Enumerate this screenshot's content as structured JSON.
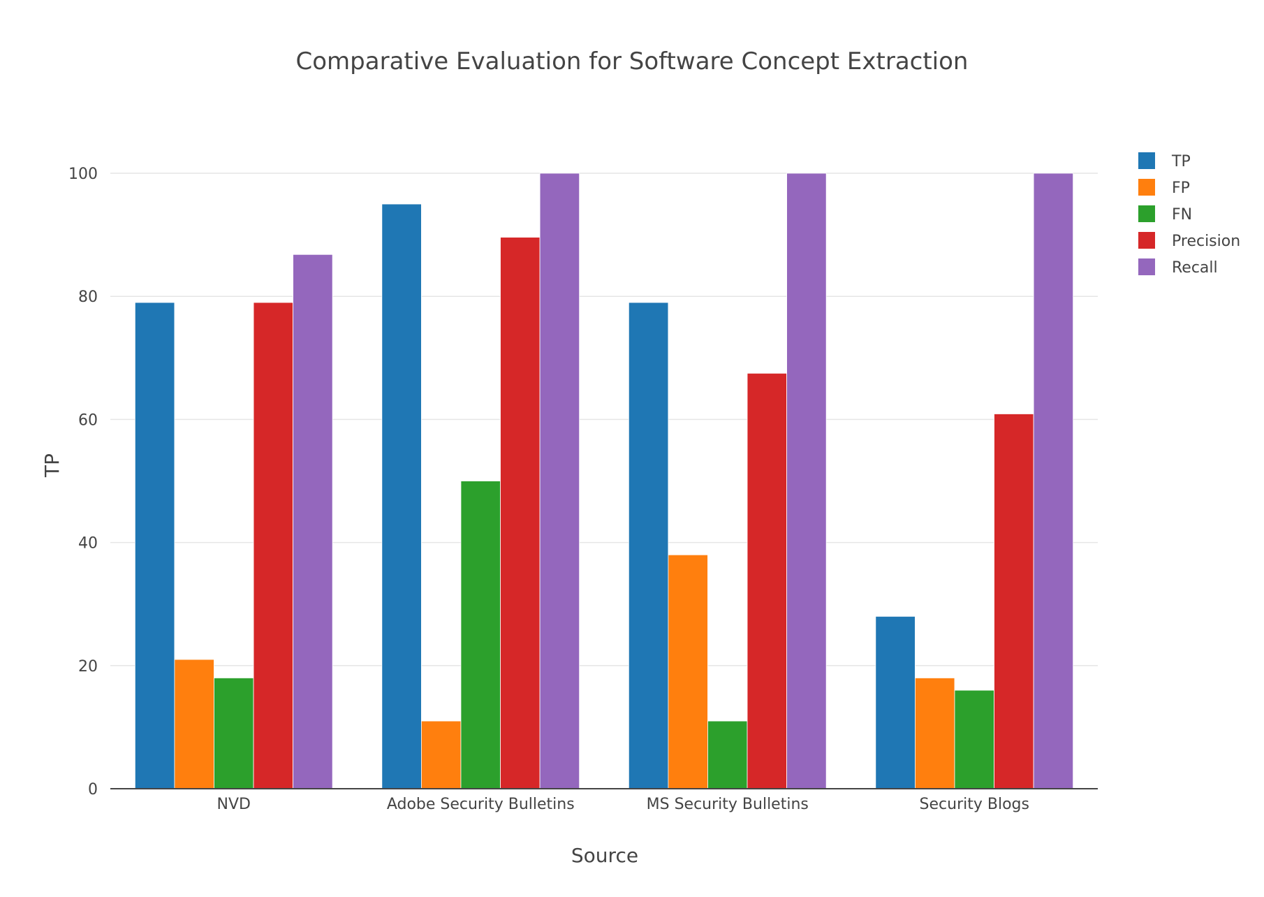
{
  "chart_data": {
    "type": "bar",
    "title": "Comparative Evaluation for Software Concept Extraction",
    "xlabel": "Source",
    "ylabel": "TP",
    "categories": [
      "NVD",
      "Adobe Security Bulletins",
      "MS Security Bulletins",
      "Security Blogs"
    ],
    "series": [
      {
        "name": "TP",
        "color": "#1f77b4",
        "values": [
          79,
          95,
          79,
          28
        ]
      },
      {
        "name": "FP",
        "color": "#ff7f0e",
        "values": [
          21,
          11,
          38,
          18
        ]
      },
      {
        "name": "FN",
        "color": "#2ca02c",
        "values": [
          18,
          50,
          11,
          16
        ]
      },
      {
        "name": "Precision",
        "color": "#d62728",
        "values": [
          79,
          89.6,
          67.5,
          60.9
        ]
      },
      {
        "name": "Recall",
        "color": "#9467bd",
        "values": [
          86.8,
          100,
          100,
          100
        ]
      }
    ],
    "ylim": [
      0,
      100
    ],
    "yticks": [
      0,
      20,
      40,
      60,
      80,
      100
    ],
    "grid": true,
    "legend_position": "top-right"
  }
}
